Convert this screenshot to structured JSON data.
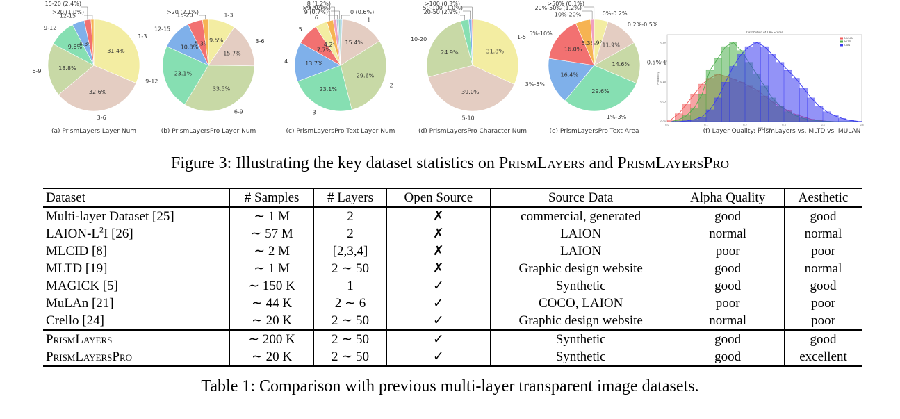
{
  "figure": {
    "caption_prefix": "Figure 3:",
    "caption_text": "Illustrating the key dataset statistics on",
    "caption_name1": "PrismLayers",
    "caption_and": "and",
    "caption_name2": "PrismLayersPro"
  },
  "chart_data": [
    {
      "type": "pie",
      "title": "(a) PrismLayers Layer Num",
      "slices": [
        {
          "label": "1-3",
          "value": 31.4,
          "color": "#f3eda2"
        },
        {
          "label": "3-6",
          "value": 32.6,
          "color": "#e4cdc2"
        },
        {
          "label": "6-9",
          "value": 18.8,
          "color": "#c8d9a6"
        },
        {
          "label": "9-12",
          "value": 9.6,
          "color": "#86dfb2"
        },
        {
          "label": "12-15",
          "value": 4.3,
          "color": "#7fb0ea"
        },
        {
          "label": "15-20",
          "value": 2.4,
          "color": "#f27171"
        },
        {
          "label": ">20",
          "value": 1.0,
          "color": "#f6b352"
        }
      ],
      "pct_labels": [
        "31.4%",
        "32.6%",
        "18.8%",
        "9.6%",
        "4.3%",
        "",
        ""
      ],
      "outer_labels": [
        "1-3",
        "3-6",
        "6-9",
        "9-12",
        "12-15",
        "15-20 (2.4%)",
        ">20 (1.0%)"
      ]
    },
    {
      "type": "pie",
      "title": "(b) PrismLayersPro Layer Num",
      "slices": [
        {
          "label": "1-3",
          "value": 9.5,
          "color": "#f3eda2"
        },
        {
          "label": "3-6",
          "value": 15.7,
          "color": "#e4cdc2"
        },
        {
          "label": "6-9",
          "value": 33.5,
          "color": "#c8d9a6"
        },
        {
          "label": "9-12",
          "value": 23.1,
          "color": "#86dfb2"
        },
        {
          "label": "12-15",
          "value": 10.8,
          "color": "#7fb0ea"
        },
        {
          "label": "15-20",
          "value": 5.3,
          "color": "#f27171"
        },
        {
          "label": ">20",
          "value": 2.1,
          "color": "#f6b352"
        }
      ],
      "pct_labels": [
        "9.5%",
        "15.7%",
        "33.5%",
        "23.1%",
        "10.8%",
        "5.3%",
        ""
      ],
      "outer_labels": [
        "1-3",
        "3-6",
        "6-9",
        "9-12",
        "12-15",
        "15-20",
        ">20 (2.1%)"
      ]
    },
    {
      "type": "pie",
      "title": "(c) PrismLayersPro Text Layer Num",
      "slices": [
        {
          "label": "0",
          "value": 0.6,
          "color": "#b9ddf5"
        },
        {
          "label": "1",
          "value": 15.4,
          "color": "#e4cdc2"
        },
        {
          "label": "2",
          "value": 29.6,
          "color": "#c8d9a6"
        },
        {
          "label": "3",
          "value": 23.1,
          "color": "#86dfb2"
        },
        {
          "label": "4",
          "value": 13.7,
          "color": "#7fb0ea"
        },
        {
          "label": "5",
          "value": 7.7,
          "color": "#f27171"
        },
        {
          "label": "6",
          "value": 4.2,
          "color": "#f3eda2"
        },
        {
          "label": "7",
          "value": 2.2,
          "color": "#f6b352"
        },
        {
          "label": "8",
          "value": 1.2,
          "color": "#f0a0c0"
        },
        {
          "label": "9",
          "value": 0.7,
          "color": "#b0c4de"
        },
        {
          "label": ">9",
          "value": 0.7,
          "color": "#9ad0c8"
        }
      ],
      "pct_labels": [
        "",
        "15.4%",
        "29.6%",
        "23.1%",
        "13.7%",
        "7.7%",
        "4.2%",
        "",
        "",
        "",
        ""
      ],
      "outer_labels": [
        "0 (0.6%)",
        "1",
        "2",
        "3",
        "4",
        "5",
        "6",
        "7 (2.2%)",
        "8 (1.2%)",
        "9 (0.7%)",
        ">9 (0.7%)"
      ]
    },
    {
      "type": "pie",
      "title": "(d) PrismLayersPro Character Num",
      "slices": [
        {
          "label": "1-5",
          "value": 31.8,
          "color": "#f3eda2"
        },
        {
          "label": "5-10",
          "value": 39.0,
          "color": "#e4cdc2"
        },
        {
          "label": "10-20",
          "value": 24.9,
          "color": "#c8d9a6"
        },
        {
          "label": "20-50",
          "value": 2.9,
          "color": "#86dfb2"
        },
        {
          "label": "50-100",
          "value": 1.0,
          "color": "#7fb0ea"
        },
        {
          "label": ">100",
          "value": 0.3,
          "color": "#f27171"
        }
      ],
      "pct_labels": [
        "31.8%",
        "39.0%",
        "24.9%",
        "",
        "",
        ""
      ],
      "outer_labels": [
        "1-5",
        "5-10",
        "10-20",
        "20-50 (2.9%)",
        "50-100 (1.0%)",
        ">100 (0.3%)"
      ]
    },
    {
      "type": "pie",
      "title": "(e) PrismLayersPro Text Area",
      "slices": [
        {
          "label": "0%-0.2%",
          "value": 4.9,
          "color": "#f3eda2"
        },
        {
          "label": "0.2%-0.5%",
          "value": 11.9,
          "color": "#e4cdc2"
        },
        {
          "label": "0.5%-1%",
          "value": 14.6,
          "color": "#c8d9a6"
        },
        {
          "label": "1%-3%",
          "value": 29.6,
          "color": "#86dfb2"
        },
        {
          "label": "3%-5%",
          "value": 16.4,
          "color": "#7fb0ea"
        },
        {
          "label": "5%-10%",
          "value": 16.0,
          "color": "#f27171"
        },
        {
          "label": "10%-20%",
          "value": 5.3,
          "color": "#f6b352"
        },
        {
          "label": "20%-50%",
          "value": 1.2,
          "color": "#f0a0c0"
        },
        {
          "label": ">50%",
          "value": 0.1,
          "color": "#b0c4de"
        }
      ],
      "pct_labels": [
        "4.9%",
        "11.9%",
        "14.6%",
        "29.6%",
        "16.4%",
        "16.0%",
        "5.3%",
        "",
        ""
      ],
      "outer_labels": [
        "0%-0.2%",
        "0.2%-0.5%",
        "0.5%-1%",
        "1%-3%",
        "3%-5%",
        "5%-10%",
        "10%-20%",
        "20%-50% (1.2%)",
        ">50% (0.1%)"
      ]
    },
    {
      "type": "bar",
      "title": "(f) Layer Quality: PrismLayers vs. MLTD vs. MULAN",
      "plot_title": "Distribution of TIPS Scores",
      "xlabel": "TIPS Score",
      "ylabel": "Probability",
      "xlim": [
        0,
        0.5
      ],
      "ylim": [
        0,
        0.22
      ],
      "x": [
        0.01,
        0.03,
        0.05,
        0.07,
        0.09,
        0.11,
        0.13,
        0.15,
        0.17,
        0.19,
        0.21,
        0.23,
        0.25,
        0.27,
        0.29,
        0.31,
        0.33,
        0.35,
        0.37,
        0.39,
        0.41,
        0.43,
        0.45,
        0.47,
        0.49
      ],
      "series": [
        {
          "name": "MULAN",
          "color": "#f05a5a",
          "values": [
            0.005,
            0.02,
            0.045,
            0.07,
            0.095,
            0.11,
            0.12,
            0.115,
            0.108,
            0.1,
            0.09,
            0.08,
            0.065,
            0.05,
            0.038,
            0.028,
            0.018,
            0.012,
            0.006,
            0.003,
            0.001,
            0,
            0,
            0,
            0
          ]
        },
        {
          "name": "MLTD",
          "color": "#4cae4c",
          "values": [
            0,
            0.005,
            0.015,
            0.035,
            0.07,
            0.13,
            0.16,
            0.19,
            0.2,
            0.18,
            0.15,
            0.12,
            0.09,
            0.06,
            0.04,
            0.025,
            0.015,
            0.008,
            0.004,
            0.002,
            0.001,
            0,
            0,
            0,
            0
          ]
        },
        {
          "name": "Ours",
          "color": "#3a3af0",
          "values": [
            0,
            0,
            0.002,
            0.005,
            0.012,
            0.03,
            0.06,
            0.1,
            0.14,
            0.17,
            0.19,
            0.2,
            0.19,
            0.17,
            0.15,
            0.13,
            0.11,
            0.085,
            0.06,
            0.04,
            0.025,
            0.015,
            0.008,
            0.003,
            0.001
          ]
        }
      ],
      "xticks": [
        "0.0",
        "0.1",
        "0.2",
        "0.3",
        "0.4",
        "0.5"
      ],
      "yticks": [
        "0.00",
        "0.05",
        "0.10",
        "0.15",
        "0.20"
      ]
    }
  ],
  "table": {
    "headers": [
      "Dataset",
      "# Samples",
      "# Layers",
      "Open Source",
      "Source Data",
      "Alpha Quality",
      "Aesthetic"
    ],
    "rows": [
      {
        "dataset": "Multi-layer Dataset [25]",
        "samples": "∼ 1 M",
        "layers": "2",
        "open": "✗",
        "source": "commercial, generated",
        "alpha": "good",
        "aesthetic": "good"
      },
      {
        "dataset_a": "LAION-L",
        "dataset_sup": "2",
        "dataset_b": "I [26]",
        "samples": "∼ 57 M",
        "layers": "2",
        "open": "✗",
        "source": "LAION",
        "alpha": "normal",
        "aesthetic": "normal"
      },
      {
        "dataset": "MLCID [8]",
        "samples": "∼ 2 M",
        "layers": "[2,3,4]",
        "open": "✗",
        "source": "LAION",
        "alpha": "poor",
        "aesthetic": "poor"
      },
      {
        "dataset": "MLTD [19]",
        "samples": "∼ 1 M",
        "layers": "2 ∼ 50",
        "open": "✗",
        "source": "Graphic design website",
        "alpha": "good",
        "aesthetic": "normal"
      },
      {
        "dataset": "MAGICK [5]",
        "samples": "∼ 150 K",
        "layers": "1",
        "open": "✓",
        "source": "Synthetic",
        "alpha": "good",
        "aesthetic": "good"
      },
      {
        "dataset": "MuLAn [21]",
        "samples": "∼ 44 K",
        "layers": "2 ∼ 6",
        "open": "✓",
        "source": "COCO, LAION",
        "alpha": "poor",
        "aesthetic": "poor"
      },
      {
        "dataset": "Crello [24]",
        "samples": "∼ 20 K",
        "layers": "2 ∼ 50",
        "open": "✓",
        "source": "Graphic design website",
        "alpha": "normal",
        "aesthetic": "poor"
      },
      {
        "dataset": "PrismLayers",
        "samples": "∼ 200 K",
        "layers": "2 ∼ 50",
        "open": "✓",
        "source": "Synthetic",
        "alpha": "good",
        "aesthetic": "good"
      },
      {
        "dataset": "PrismLayersPro",
        "samples": "∼ 20 K",
        "layers": "2 ∼ 50",
        "open": "✓",
        "source": "Synthetic",
        "alpha": "good",
        "aesthetic": "excellent"
      }
    ],
    "caption_prefix": "Table 1:",
    "caption_text": "Comparison with previous multi-layer transparent image datasets."
  }
}
